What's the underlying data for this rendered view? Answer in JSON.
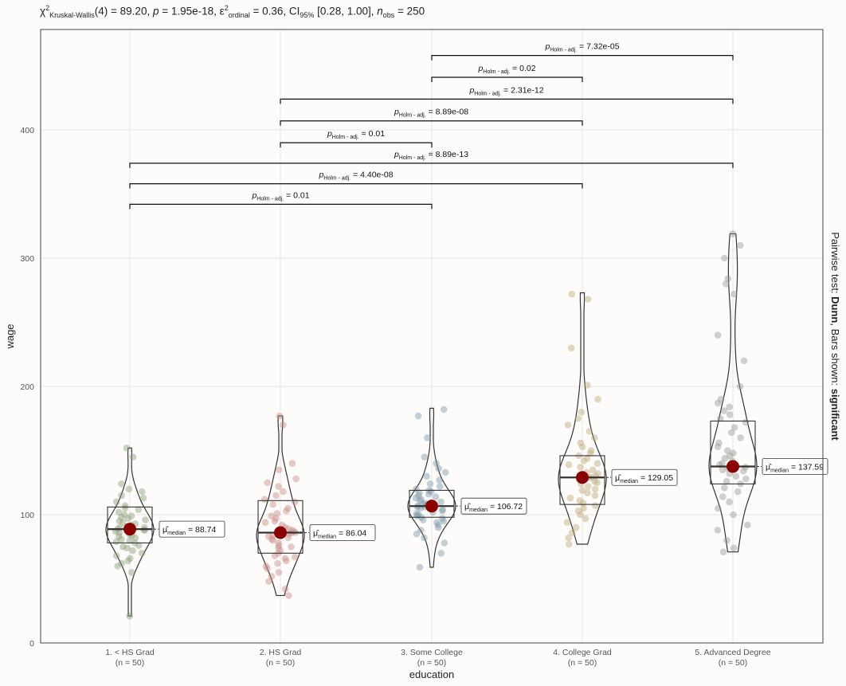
{
  "subtitle": {
    "chi": "χ",
    "chi_sup": "2",
    "chi_sub": "Kruskal-Wallis",
    "df": "(4) = 89.20, ",
    "p_label": "p",
    "p_value": " = 1.95e-18, ",
    "eps": "ε",
    "eps_sup": "2",
    "eps_sub": "ordinal",
    "eps_value": " = 0.36, CI",
    "ci_sub": "95%",
    "ci_value": " [0.28, 1.00], ",
    "n_label": "n",
    "n_sub": "obs",
    "n_value": " = 250"
  },
  "caption_right": {
    "prefix": "Pairwise test: ",
    "test": "Dunn",
    "mid": ", Bars shown: ",
    "shown": "significant"
  },
  "chart_data": {
    "type": "violin",
    "xlabel": "education",
    "ylabel": "wage",
    "ylim": [
      0,
      480
    ],
    "yticks": [
      0,
      100,
      200,
      300,
      400
    ],
    "grid": true,
    "categories": [
      {
        "name": "1. < HS Grad",
        "n": "(n = 50)",
        "color": "#8a9f7b",
        "median": 88.74,
        "label": "88.74",
        "box": {
          "q1": 78,
          "median": 88.74,
          "q3": 106
        },
        "violin_range": [
          21,
          152
        ],
        "points": [
          21,
          55,
          60,
          62,
          64,
          66,
          68,
          70,
          72,
          74,
          75,
          76,
          78,
          79,
          80,
          81,
          82,
          83,
          84,
          85,
          86,
          87,
          88,
          88,
          89,
          89,
          90,
          90,
          91,
          92,
          93,
          94,
          95,
          96,
          97,
          98,
          99,
          100,
          102,
          104,
          105,
          107,
          110,
          113,
          115,
          118,
          120,
          124,
          145,
          152
        ]
      },
      {
        "name": "2. HS Grad",
        "n": "(n = 50)",
        "color": "#c98b85",
        "median": 86.04,
        "label": "86.04",
        "box": {
          "q1": 70,
          "median": 86.04,
          "q3": 111
        },
        "violin_range": [
          37,
          177
        ],
        "points": [
          37,
          42,
          48,
          52,
          55,
          58,
          60,
          62,
          64,
          66,
          67,
          68,
          70,
          72,
          74,
          75,
          76,
          78,
          80,
          81,
          82,
          83,
          84,
          85,
          86,
          86,
          87,
          88,
          89,
          90,
          92,
          94,
          95,
          97,
          99,
          101,
          103,
          105,
          108,
          110,
          112,
          115,
          118,
          122,
          125,
          128,
          135,
          140,
          170,
          177
        ]
      },
      {
        "name": "3. Some College",
        "n": "(n = 50)",
        "color": "#7f9aa8",
        "median": 106.72,
        "label": "106.72",
        "box": {
          "q1": 98,
          "median": 106.72,
          "q3": 119
        },
        "violin_range": [
          59,
          183
        ],
        "points": [
          59,
          70,
          78,
          82,
          85,
          88,
          90,
          92,
          94,
          95,
          96,
          97,
          98,
          99,
          100,
          101,
          102,
          103,
          104,
          105,
          105,
          106,
          106,
          107,
          107,
          108,
          108,
          109,
          110,
          111,
          112,
          113,
          114,
          115,
          116,
          117,
          118,
          119,
          120,
          122,
          124,
          127,
          130,
          133,
          136,
          140,
          145,
          160,
          177,
          182
        ]
      },
      {
        "name": "4. College Grad",
        "n": "(n = 50)",
        "color": "#bfa878",
        "median": 129.05,
        "label": "129.05",
        "box": {
          "q1": 108,
          "median": 129.05,
          "q3": 146
        },
        "violin_range": [
          77,
          273
        ],
        "points": [
          77,
          82,
          86,
          90,
          94,
          97,
          100,
          103,
          105,
          107,
          109,
          111,
          113,
          115,
          117,
          119,
          120,
          122,
          124,
          125,
          126,
          127,
          128,
          129,
          129,
          130,
          131,
          132,
          133,
          135,
          137,
          139,
          140,
          142,
          144,
          146,
          148,
          150,
          153,
          156,
          160,
          165,
          170,
          175,
          180,
          190,
          201,
          230,
          268,
          272
        ]
      },
      {
        "name": "5. Advanced Degree",
        "n": "(n = 50)",
        "color": "#9a9a9a",
        "median": 137.59,
        "label": "137.59",
        "box": {
          "q1": 124,
          "median": 137.59,
          "q3": 173
        },
        "violin_range": [
          71,
          319
        ],
        "points": [
          71,
          74,
          80,
          88,
          92,
          100,
          105,
          110,
          114,
          118,
          121,
          124,
          126,
          128,
          130,
          132,
          134,
          135,
          136,
          137,
          137,
          138,
          139,
          140,
          142,
          144,
          146,
          148,
          150,
          153,
          156,
          160,
          164,
          168,
          172,
          175,
          178,
          181,
          184,
          187,
          190,
          200,
          220,
          240,
          272,
          280,
          284,
          300,
          310,
          319
        ]
      }
    ],
    "pairwise": [
      {
        "from": 0,
        "to": 2,
        "y": 342,
        "p": "0.01"
      },
      {
        "from": 0,
        "to": 3,
        "y": 358,
        "p": "4.40e-08"
      },
      {
        "from": 0,
        "to": 4,
        "y": 374,
        "p": "8.89e-13"
      },
      {
        "from": 1,
        "to": 2,
        "y": 390,
        "p": "0.01"
      },
      {
        "from": 1,
        "to": 3,
        "y": 407,
        "p": "8.89e-08"
      },
      {
        "from": 1,
        "to": 4,
        "y": 424,
        "p": "2.31e-12"
      },
      {
        "from": 2,
        "to": 3,
        "y": 441,
        "p": "0.02"
      },
      {
        "from": 2,
        "to": 4,
        "y": 458,
        "p": "7.32e-05"
      }
    ],
    "p_prefix": "p",
    "p_sub": "Holm - adj.",
    "mu_symbol": "μ̂",
    "mu_sub": "median",
    "mean_point_color": "#8b0000"
  }
}
